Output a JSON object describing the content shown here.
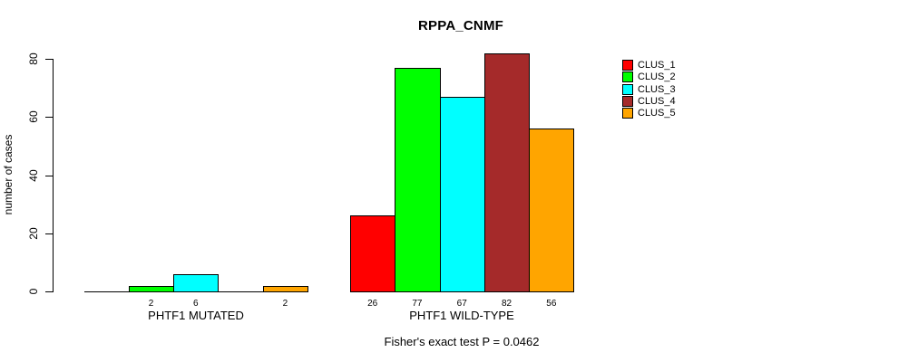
{
  "chart_data": {
    "type": "bar",
    "title": "RPPA_CNMF",
    "categories": [
      "PHTF1 MUTATED",
      "PHTF1 WILD-TYPE"
    ],
    "series": [
      {
        "name": "CLUS_1",
        "color": "#FF0000",
        "values": [
          0,
          26
        ]
      },
      {
        "name": "CLUS_2",
        "color": "#00FF00",
        "values": [
          2,
          77
        ]
      },
      {
        "name": "CLUS_3",
        "color": "#00FFFF",
        "values": [
          6,
          67
        ]
      },
      {
        "name": "CLUS_4",
        "color": "#A52A2A",
        "values": [
          0,
          82
        ]
      },
      {
        "name": "CLUS_5",
        "color": "#FFA500",
        "values": [
          2,
          56
        ]
      }
    ],
    "bar_value_labels": [
      [
        "",
        "2",
        "6",
        "",
        "2"
      ],
      [
        "26",
        "77",
        "67",
        "82",
        "56"
      ]
    ],
    "xlabel": "",
    "ylabel": "number of cases",
    "ylim": [
      0,
      80
    ],
    "yticks": [
      0,
      20,
      40,
      60,
      80
    ],
    "grid": false,
    "legend_position": "right",
    "legend_labels": [
      "CLUS_1",
      "CLUS_2",
      "CLUS_3",
      "CLUS_4",
      "CLUS_5"
    ],
    "footnote": "Fisher's exact test P = 0.0462",
    "bar_border_color": "#000000",
    "axis_color": "#000000",
    "background_color": "#FFFFFF"
  }
}
